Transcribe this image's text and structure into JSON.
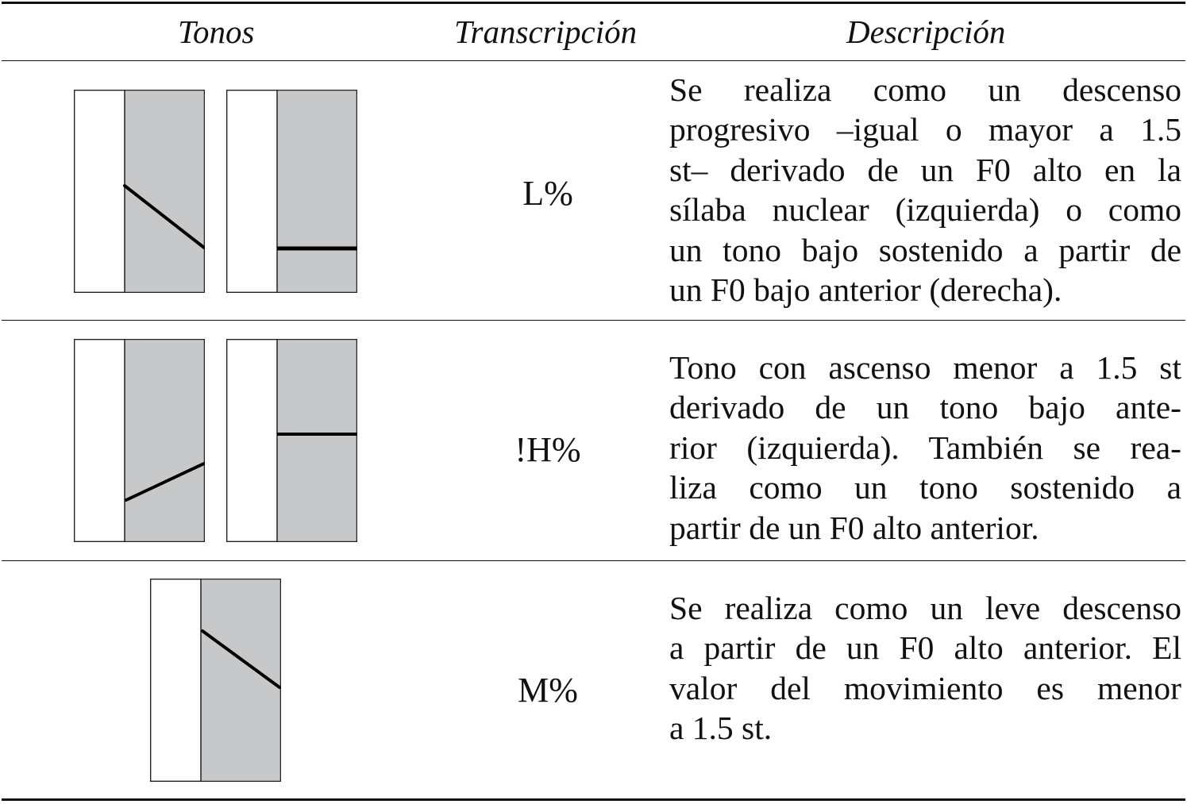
{
  "table": {
    "headers": {
      "tonos": "Tonos",
      "transcripcion": "Transcripción",
      "descripcion": "Descripción"
    },
    "rows": [
      {
        "code": "L%",
        "diagrams": [
          {
            "contour": "falling"
          },
          {
            "contour": "low-level"
          }
        ],
        "lines": [
          "Se realiza como un descenso",
          "progresivo –igual o mayor a 1.5",
          "st– derivado de un F0 alto en la",
          "sílaba nuclear (izquierda) o como",
          "un tono bajo sostenido a partir de",
          "un F0 bajo anterior (derecha)."
        ]
      },
      {
        "code": "!H%",
        "diagrams": [
          {
            "contour": "rising-low"
          },
          {
            "contour": "high-level"
          }
        ],
        "lines": [
          "Tono con ascenso menor a 1.5 st",
          "derivado de un tono bajo ante-",
          "rior (izquierda). También se rea-",
          "liza como un tono sostenido a",
          "partir de un F0 alto anterior."
        ]
      },
      {
        "code": "M%",
        "diagrams": [
          {
            "contour": "slight-falling"
          }
        ],
        "lines": [
          "Se realiza como un leve descenso",
          "a partir de un F0 alto anterior. El",
          "valor del movimiento es menor",
          "a 1.5 st."
        ]
      }
    ]
  },
  "colors": {
    "rule": "#111111",
    "stressed_fill": "#c7c8ca",
    "box_border": "#222222",
    "contour_line": "#000000"
  }
}
